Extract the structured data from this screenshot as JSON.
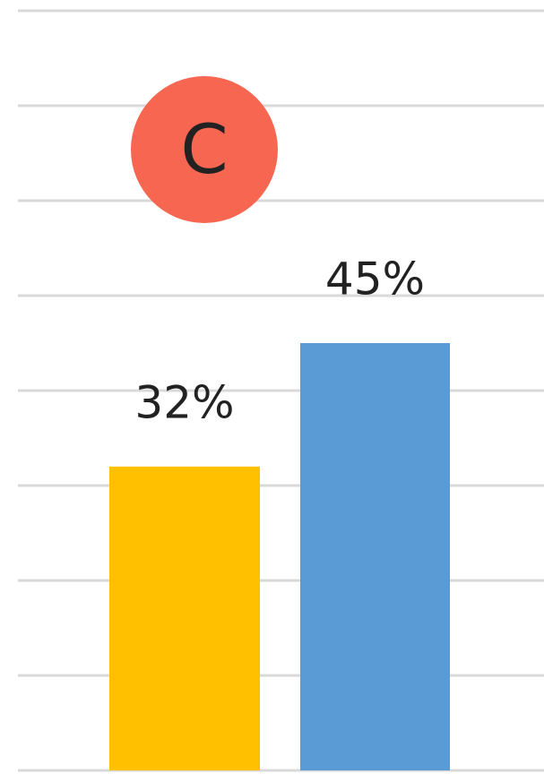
{
  "chart_data": {
    "type": "bar",
    "categories": [
      null,
      null
    ],
    "values": [
      32,
      45
    ],
    "value_labels": [
      "32%",
      "45%"
    ],
    "colors": [
      "#ffc000",
      "#5b9bd5"
    ],
    "ylim": [
      0,
      80
    ],
    "yticks": [
      0,
      10,
      20,
      30,
      40,
      50,
      60,
      70,
      80
    ],
    "grid": true,
    "annotation": {
      "text": "C",
      "color": "#f76650"
    }
  }
}
